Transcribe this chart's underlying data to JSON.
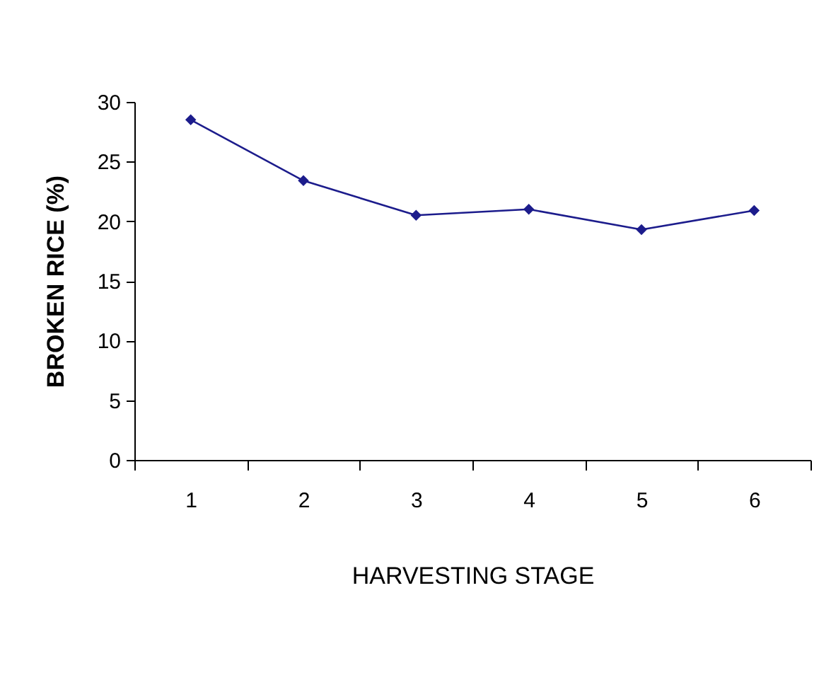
{
  "chart_data": {
    "type": "line",
    "xlabel": "HARVESTING STAGE",
    "ylabel": "BROKEN RICE (%)",
    "categories": [
      "1",
      "2",
      "3",
      "4",
      "5",
      "6"
    ],
    "series": [
      {
        "color": "#1c1c8c",
        "values": [
          28.5,
          23.4,
          20.5,
          21.0,
          19.3,
          20.9
        ]
      }
    ],
    "ylim": [
      0,
      30
    ],
    "yticks": [
      0,
      5,
      10,
      15,
      20,
      25,
      30
    ],
    "marker": "diamond",
    "line_style": "solid"
  }
}
